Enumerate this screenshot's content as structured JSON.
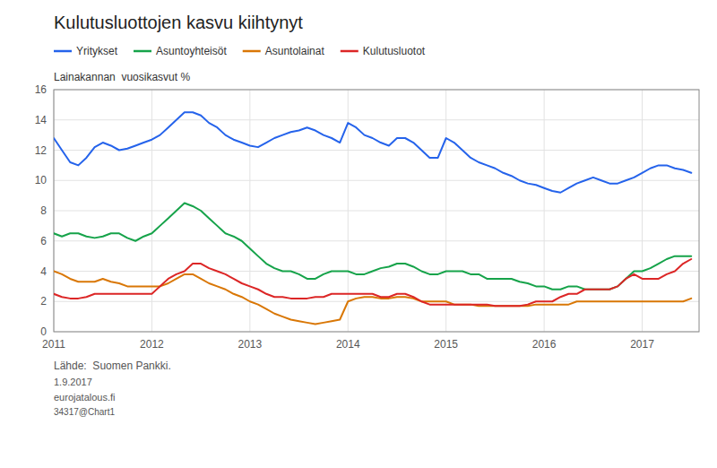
{
  "chart_data": {
    "type": "line",
    "title": "Kulutusluottojen kasvu kiihtynyt",
    "ylabel": "Lainakannan  vuosikasvut %",
    "annotations": [
      "Lähde:  Suomen Pankki.",
      "1.9.2017",
      "eurojatalous.fi",
      "34317@Chart1"
    ],
    "xlim": [
      2011.0,
      2017.58
    ],
    "xticks": [
      2011,
      2012,
      2013,
      2014,
      2015,
      2016,
      2017
    ],
    "ylim": [
      0,
      16
    ],
    "yticks": [
      0,
      2,
      4,
      6,
      8,
      10,
      12,
      14,
      16
    ],
    "grid": true,
    "legend": "upper left",
    "x": [
      2011.0,
      2011.083,
      2011.167,
      2011.25,
      2011.333,
      2011.417,
      2011.5,
      2011.583,
      2011.667,
      2011.75,
      2011.833,
      2011.917,
      2012.0,
      2012.083,
      2012.167,
      2012.25,
      2012.333,
      2012.417,
      2012.5,
      2012.583,
      2012.667,
      2012.75,
      2012.833,
      2012.917,
      2013.0,
      2013.083,
      2013.167,
      2013.25,
      2013.333,
      2013.417,
      2013.5,
      2013.583,
      2013.667,
      2013.75,
      2013.833,
      2013.917,
      2014.0,
      2014.083,
      2014.167,
      2014.25,
      2014.333,
      2014.417,
      2014.5,
      2014.583,
      2014.667,
      2014.75,
      2014.833,
      2014.917,
      2015.0,
      2015.083,
      2015.167,
      2015.25,
      2015.333,
      2015.417,
      2015.5,
      2015.583,
      2015.667,
      2015.75,
      2015.833,
      2015.917,
      2016.0,
      2016.083,
      2016.167,
      2016.25,
      2016.333,
      2016.417,
      2016.5,
      2016.583,
      2016.667,
      2016.75,
      2016.833,
      2016.917,
      2017.0,
      2017.083,
      2017.167,
      2017.25,
      2017.333,
      2017.417,
      2017.5
    ],
    "series": [
      {
        "name": "Yritykset",
        "color": "#2563eb",
        "values": [
          12.8,
          12.0,
          11.2,
          11.0,
          11.5,
          12.2,
          12.5,
          12.3,
          12.0,
          12.1,
          12.3,
          12.5,
          12.7,
          13.0,
          13.5,
          14.0,
          14.5,
          14.5,
          14.3,
          13.8,
          13.5,
          13.0,
          12.7,
          12.5,
          12.3,
          12.2,
          12.5,
          12.8,
          13.0,
          13.2,
          13.3,
          13.5,
          13.3,
          13.0,
          12.8,
          12.5,
          13.8,
          13.5,
          13.0,
          12.8,
          12.5,
          12.3,
          12.8,
          12.8,
          12.5,
          12.0,
          11.5,
          11.5,
          12.8,
          12.5,
          12.0,
          11.5,
          11.2,
          11.0,
          10.8,
          10.5,
          10.3,
          10.0,
          9.8,
          9.7,
          9.5,
          9.3,
          9.2,
          9.5,
          9.8,
          10.0,
          10.2,
          10.0,
          9.8,
          9.8,
          10.0,
          10.2,
          10.5,
          10.8,
          11.0,
          11.0,
          10.8,
          10.7,
          10.5
        ]
      },
      {
        "name": "Asuntoyhteisöt",
        "color": "#16a34a",
        "values": [
          6.5,
          6.3,
          6.5,
          6.5,
          6.3,
          6.2,
          6.3,
          6.5,
          6.5,
          6.2,
          6.0,
          6.3,
          6.5,
          7.0,
          7.5,
          8.0,
          8.5,
          8.3,
          8.0,
          7.5,
          7.0,
          6.5,
          6.3,
          6.0,
          5.5,
          5.0,
          4.5,
          4.2,
          4.0,
          4.0,
          3.8,
          3.5,
          3.5,
          3.8,
          4.0,
          4.0,
          4.0,
          3.8,
          3.8,
          4.0,
          4.2,
          4.3,
          4.5,
          4.5,
          4.3,
          4.0,
          3.8,
          3.8,
          4.0,
          4.0,
          4.0,
          3.8,
          3.8,
          3.5,
          3.5,
          3.5,
          3.5,
          3.3,
          3.2,
          3.0,
          3.0,
          2.8,
          2.8,
          3.0,
          3.0,
          2.8,
          2.8,
          2.8,
          2.8,
          3.0,
          3.5,
          4.0,
          4.0,
          4.2,
          4.5,
          4.8,
          5.0,
          5.0,
          5.0
        ]
      },
      {
        "name": "Asuntolainat",
        "color": "#d97706",
        "values": [
          4.0,
          3.8,
          3.5,
          3.3,
          3.3,
          3.3,
          3.5,
          3.3,
          3.2,
          3.0,
          3.0,
          3.0,
          3.0,
          3.0,
          3.2,
          3.5,
          3.8,
          3.8,
          3.5,
          3.2,
          3.0,
          2.8,
          2.5,
          2.3,
          2.0,
          1.8,
          1.5,
          1.2,
          1.0,
          0.8,
          0.7,
          0.6,
          0.5,
          0.6,
          0.7,
          0.8,
          2.0,
          2.2,
          2.3,
          2.3,
          2.2,
          2.2,
          2.3,
          2.3,
          2.2,
          2.0,
          2.0,
          2.0,
          2.0,
          1.8,
          1.8,
          1.8,
          1.7,
          1.7,
          1.7,
          1.7,
          1.7,
          1.7,
          1.7,
          1.8,
          1.8,
          1.8,
          1.8,
          1.8,
          2.0,
          2.0,
          2.0,
          2.0,
          2.0,
          2.0,
          2.0,
          2.0,
          2.0,
          2.0,
          2.0,
          2.0,
          2.0,
          2.0,
          2.2
        ]
      },
      {
        "name": "Kulutusluotot",
        "color": "#dc2626",
        "values": [
          2.5,
          2.3,
          2.2,
          2.2,
          2.3,
          2.5,
          2.5,
          2.5,
          2.5,
          2.5,
          2.5,
          2.5,
          2.5,
          3.0,
          3.5,
          3.8,
          4.0,
          4.5,
          4.5,
          4.2,
          4.0,
          3.8,
          3.5,
          3.2,
          3.0,
          2.8,
          2.5,
          2.3,
          2.3,
          2.2,
          2.2,
          2.2,
          2.3,
          2.3,
          2.5,
          2.5,
          2.5,
          2.5,
          2.5,
          2.5,
          2.3,
          2.3,
          2.5,
          2.5,
          2.3,
          2.0,
          1.8,
          1.8,
          1.8,
          1.8,
          1.8,
          1.8,
          1.8,
          1.8,
          1.7,
          1.7,
          1.7,
          1.7,
          1.8,
          2.0,
          2.0,
          2.0,
          2.3,
          2.5,
          2.5,
          2.8,
          2.8,
          2.8,
          2.8,
          3.0,
          3.5,
          3.8,
          3.5,
          3.5,
          3.5,
          3.8,
          4.0,
          4.5,
          4.8
        ]
      }
    ]
  }
}
